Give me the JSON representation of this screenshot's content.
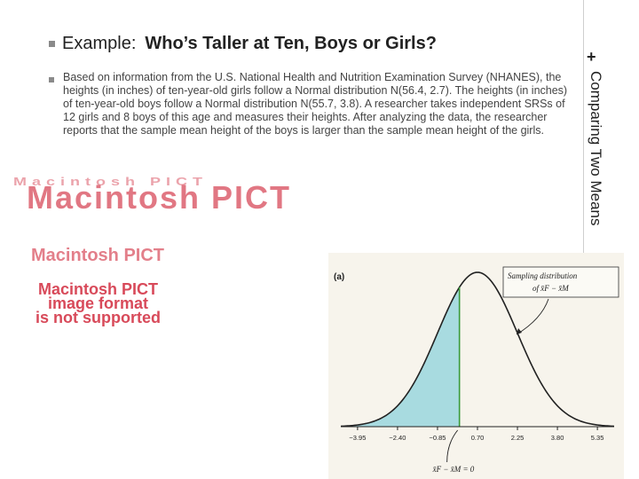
{
  "slide": {
    "title_prefix": "Example:",
    "title": "Who’s Taller at Ten, Boys or Girls?",
    "side_label": "Comparing Two Means",
    "plus_symbol": "+",
    "body": "Based on information from the U.S. National Health and Nutrition Examination Survey (NHANES), the heights (in inches) of ten-year-old girls follow a Normal distribution N(56.4, 2.7). The heights (in inches) of ten-year-old boys follow a Normal distribution N(55.7, 3.8). A researcher takes independent SRSs of 12 girls and 8 boys of this age and measures their heights. After analyzing the data, the researcher reports that the sample mean height of the boys is larger than the sample mean height of the girls."
  },
  "placeholder": {
    "line1": "Macintosh PICT",
    "line2": "image format",
    "line3": "is not supported"
  },
  "figure": {
    "panel_label": "(a)",
    "callout_line1": "Sampling distribution",
    "callout_line2": "of x̄F − x̄M",
    "marker_label": "x̄F − x̄M = 0",
    "shade_color": "#a8dbe0",
    "curve_color": "#222222",
    "marker_color": "#3a9a3a"
  },
  "chart_data": {
    "type": "area",
    "title": "",
    "xlabel": "",
    "ylabel": "",
    "mean": 0.7,
    "sd": 1.55,
    "x_ticks": [
      -3.95,
      -2.4,
      -0.85,
      0.7,
      2.25,
      3.8,
      5.35
    ],
    "x_tick_labels": [
      "−3.95",
      "−2.40",
      "−0.85",
      "0.70",
      "2.25",
      "3.80",
      "5.35"
    ],
    "xlim": [
      -4.6,
      6.0
    ],
    "shaded_region": [
      -4.6,
      0
    ],
    "marker_x": 0
  }
}
